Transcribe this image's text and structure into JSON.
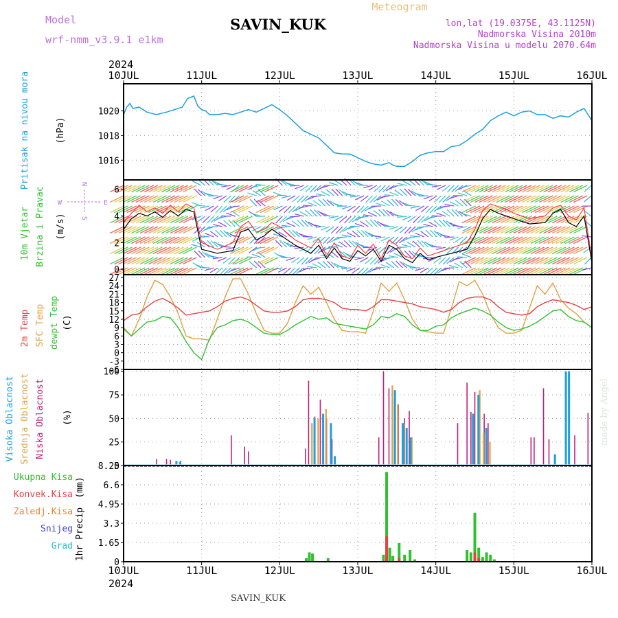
{
  "header": {
    "title": "SAVIN_KUK",
    "product": "Meteogram",
    "model_label": "Model",
    "model_name": "wrf-nmm_v3.9.1 e1km",
    "lonlat": "lon,lat (19.0375E, 43.1125N)",
    "elevation": "Nadmorska Visina 2010m",
    "model_elevation": "Nadmorska Visina u modelu 2070.64m",
    "footer_station": "SAVIN_KUK",
    "watermark": "made by Angel",
    "year_top": "2024",
    "year_bottom": "2024"
  },
  "colors": {
    "pressure": "#1a9fe0",
    "wind_speed": "#000000",
    "gust": "#ff3030",
    "temp2m": "#e84040",
    "sfc_temp": "#e0a040",
    "dewpoint": "#30c030",
    "cloud_high": "#1a9fe0",
    "cloud_mid": "#e0a040",
    "cloud_low": "#c0207a",
    "precip_total": "#30c030",
    "precip_conv": "#e84040",
    "precip_frozen": "#f08030",
    "snow": "#4040e0",
    "hail": "#20c0c0",
    "model_label": "#c070e0",
    "title_product": "#e8c080",
    "info_text": "#b040d0"
  },
  "chart_data": [
    {
      "type": "line",
      "panel": "pressure",
      "ylabel_name": "Pritisak na nivou mora",
      "ylabel_unit": "(hPa)",
      "ylim": [
        1014.4,
        1022.2
      ],
      "yticks": [
        "1016",
        "1018",
        "1020"
      ],
      "x_days": [
        "10JUL",
        "11JUL",
        "12JUL",
        "13JUL",
        "14JUL",
        "15JUL",
        "16JUL"
      ],
      "x": [
        0,
        0.04,
        0.08,
        0.12,
        0.2,
        0.3,
        0.42,
        0.55,
        0.65,
        0.75,
        0.82,
        0.9,
        0.95,
        1.0,
        1.05,
        1.1,
        1.2,
        1.3,
        1.4,
        1.5,
        1.6,
        1.7,
        1.8,
        1.9,
        2.0,
        2.1,
        2.2,
        2.3,
        2.4,
        2.5,
        2.6,
        2.7,
        2.8,
        2.9,
        3.0,
        3.1,
        3.2,
        3.3,
        3.4,
        3.45,
        3.5,
        3.6,
        3.7,
        3.8,
        3.9,
        4.0,
        4.1,
        4.2,
        4.3,
        4.4,
        4.5,
        4.6,
        4.7,
        4.8,
        4.9,
        5.0,
        5.1,
        5.2,
        5.3,
        5.4,
        5.5,
        5.6,
        5.7,
        5.8,
        5.9,
        6.0
      ],
      "values": [
        1019.7,
        1020.3,
        1020.6,
        1020.2,
        1020.3,
        1019.9,
        1019.7,
        1019.9,
        1020.1,
        1020.3,
        1021.0,
        1021.2,
        1020.4,
        1020.1,
        1020.0,
        1019.7,
        1019.7,
        1019.8,
        1019.7,
        1019.9,
        1020.1,
        1019.9,
        1020.2,
        1020.5,
        1020.1,
        1019.6,
        1019.0,
        1018.4,
        1018.1,
        1017.8,
        1017.2,
        1016.6,
        1016.5,
        1016.5,
        1016.2,
        1015.9,
        1015.7,
        1015.6,
        1015.8,
        1015.6,
        1015.5,
        1015.5,
        1015.9,
        1016.4,
        1016.6,
        1016.7,
        1016.7,
        1017.1,
        1017.2,
        1017.6,
        1018.1,
        1018.5,
        1019.2,
        1019.6,
        1019.9,
        1019.6,
        1019.9,
        1020.0,
        1019.7,
        1019.7,
        1019.4,
        1019.6,
        1019.5,
        1019.9,
        1020.2,
        1019.2
      ]
    },
    {
      "type": "line",
      "panel": "wind",
      "ylabel_name": "10m Vjetar",
      "ylabel_name2": "Brzina i Pravac",
      "ylabel_unit": "(m/s)",
      "compass_north": "N",
      "compass_south": "S",
      "compass_east": "E",
      "compass_west": "W",
      "ylim": [
        -0.4,
        6.7
      ],
      "yticks": [
        "0",
        "2",
        "4",
        "6"
      ],
      "x": [
        0,
        0.1,
        0.2,
        0.3,
        0.4,
        0.5,
        0.6,
        0.7,
        0.8,
        0.9,
        1.0,
        1.2,
        1.4,
        1.5,
        1.6,
        1.7,
        1.8,
        1.9,
        2.0,
        2.2,
        2.4,
        2.5,
        2.6,
        2.7,
        2.8,
        2.9,
        3.0,
        3.1,
        3.2,
        3.3,
        3.4,
        3.5,
        3.6,
        3.7,
        3.8,
        3.9,
        4.0,
        4.2,
        4.4,
        4.5,
        4.6,
        4.7,
        4.8,
        4.9,
        5.0,
        5.2,
        5.4,
        5.5,
        5.6,
        5.7,
        5.8,
        5.9,
        6.0
      ],
      "speed": [
        3.0,
        3.8,
        4.2,
        4.0,
        4.3,
        3.9,
        4.4,
        4.0,
        4.5,
        4.3,
        1.5,
        1.2,
        1.4,
        2.8,
        3.0,
        2.2,
        2.5,
        3.0,
        2.6,
        1.8,
        1.2,
        1.8,
        0.8,
        1.6,
        0.8,
        0.6,
        1.4,
        1.0,
        1.5,
        0.6,
        1.8,
        1.5,
        0.8,
        0.5,
        1.2,
        0.7,
        0.9,
        1.2,
        1.5,
        2.5,
        3.8,
        4.5,
        4.2,
        4.0,
        3.8,
        3.4,
        3.5,
        4.2,
        4.5,
        3.5,
        3.2,
        4.0,
        0.5
      ],
      "gust": [
        3.5,
        4.2,
        4.8,
        4.3,
        4.6,
        4.2,
        4.8,
        4.3,
        4.9,
        4.6,
        2.0,
        1.5,
        2.0,
        3.2,
        3.6,
        2.8,
        3.0,
        3.5,
        3.2,
        2.2,
        1.6,
        2.3,
        1.0,
        2.0,
        1.0,
        0.8,
        1.8,
        1.2,
        1.9,
        0.8,
        2.2,
        1.8,
        1.0,
        0.8,
        1.6,
        1.0,
        1.2,
        1.6,
        2.0,
        3.0,
        4.4,
        4.9,
        4.7,
        4.5,
        4.2,
        3.8,
        4.0,
        4.6,
        4.8,
        4.0,
        3.7,
        4.6,
        0.8
      ]
    },
    {
      "type": "line",
      "panel": "temperature",
      "ylabel_name1": "2m Temp",
      "ylabel_name2": "SFC Temp",
      "ylabel_name3": "dewpt Temp",
      "ylabel_unit": "(C)",
      "ylim": [
        -6,
        28
      ],
      "yticks": [
        "-6",
        "-3",
        "0",
        "3",
        "6",
        "9",
        "12",
        "15",
        "18",
        "21",
        "24",
        "27"
      ],
      "x": [
        0,
        0.1,
        0.2,
        0.3,
        0.4,
        0.5,
        0.6,
        0.7,
        0.8,
        0.9,
        1.0,
        1.1,
        1.2,
        1.3,
        1.4,
        1.5,
        1.6,
        1.7,
        1.8,
        1.9,
        2.0,
        2.1,
        2.2,
        2.3,
        2.4,
        2.5,
        2.6,
        2.7,
        2.8,
        2.9,
        3.0,
        3.1,
        3.2,
        3.3,
        3.4,
        3.5,
        3.6,
        3.7,
        3.8,
        3.9,
        4.0,
        4.1,
        4.2,
        4.3,
        4.4,
        4.5,
        4.6,
        4.7,
        4.8,
        4.9,
        5.0,
        5.1,
        5.2,
        5.3,
        5.4,
        5.5,
        5.6,
        5.7,
        5.8,
        5.9,
        6.0
      ],
      "t2m": [
        11.5,
        13.5,
        14.0,
        16.5,
        18.5,
        19.5,
        18.0,
        16.0,
        13.5,
        14.0,
        14.5,
        15.0,
        16.5,
        18.5,
        19.5,
        20.0,
        19.0,
        17.0,
        15.0,
        14.5,
        14.5,
        15.0,
        16.5,
        19.0,
        19.5,
        19.5,
        19.0,
        18.0,
        16.0,
        15.5,
        15.5,
        15.0,
        16.5,
        19.0,
        19.0,
        18.5,
        18.0,
        17.5,
        16.5,
        16.0,
        15.5,
        14.5,
        15.5,
        18.0,
        19.5,
        20.0,
        20.0,
        19.0,
        16.5,
        14.5,
        14.0,
        13.5,
        14.0,
        16.5,
        18.0,
        19.0,
        18.5,
        18.0,
        17.0,
        15.5,
        16.5
      ],
      "sfc": [
        9.0,
        6.0,
        12.0,
        20.0,
        26.0,
        24.5,
        20.0,
        14.0,
        6.0,
        5.0,
        5.0,
        4.5,
        12.0,
        20.0,
        26.5,
        26.5,
        21.0,
        14.0,
        8.0,
        7.0,
        7.0,
        10.5,
        18.0,
        24.0,
        21.0,
        23.5,
        18.0,
        12.0,
        8.0,
        7.5,
        7.5,
        7.0,
        15.0,
        25.0,
        22.0,
        25.0,
        19.0,
        12.0,
        8.0,
        7.5,
        7.0,
        7.0,
        16.0,
        25.5,
        24.0,
        26.0,
        21.0,
        14.0,
        9.0,
        7.0,
        7.0,
        8.0,
        16.0,
        24.0,
        21.0,
        25.0,
        19.0,
        16.0,
        14.0,
        11.0,
        9.0
      ],
      "dewpt": [
        8.5,
        6.0,
        8.5,
        11.0,
        11.5,
        13.0,
        12.5,
        9.0,
        4.0,
        0.0,
        -2.5,
        5.0,
        9.0,
        10.0,
        11.5,
        12.0,
        11.0,
        9.0,
        7.0,
        6.5,
        6.5,
        8.0,
        10.0,
        11.5,
        13.0,
        12.0,
        12.5,
        10.5,
        10.0,
        9.5,
        9.0,
        8.5,
        10.0,
        13.0,
        12.5,
        14.0,
        13.0,
        10.0,
        8.0,
        8.0,
        9.5,
        10.0,
        12.5,
        14.0,
        15.0,
        16.0,
        15.0,
        13.5,
        11.0,
        9.0,
        8.0,
        8.5,
        9.5,
        11.0,
        13.0,
        15.0,
        15.5,
        13.0,
        11.5,
        11.0,
        9.0
      ]
    },
    {
      "type": "bar",
      "panel": "clouds",
      "ylabel_name1": "Visoka Oblacnost",
      "ylabel_name2": "Srednja Oblacnost",
      "ylabel_name3": "Niska Oblacnost",
      "ylabel_unit": "(%)",
      "ylim": [
        0,
        102
      ],
      "yticks": [
        "0",
        "25",
        "50",
        "75",
        "100"
      ],
      "high": [
        [
          0.65,
          5
        ],
        [
          0.7,
          4
        ],
        [
          2.42,
          50
        ],
        [
          2.53,
          55
        ],
        [
          2.63,
          45
        ],
        [
          2.68,
          10
        ],
        [
          3.45,
          80
        ],
        [
          3.55,
          45
        ],
        [
          3.6,
          40
        ],
        [
          3.65,
          30
        ],
        [
          4.45,
          55
        ],
        [
          4.52,
          75
        ],
        [
          4.62,
          40
        ],
        [
          5.5,
          12
        ],
        [
          5.64,
          100
        ],
        [
          5.68,
          100
        ]
      ],
      "mid": [
        [
          2.4,
          45
        ],
        [
          2.48,
          50
        ],
        [
          2.58,
          60
        ],
        [
          3.43,
          85
        ],
        [
          3.5,
          65
        ],
        [
          3.58,
          45
        ],
        [
          3.68,
          30
        ],
        [
          4.47,
          55
        ],
        [
          4.55,
          80
        ],
        [
          4.6,
          35
        ],
        [
          4.68,
          25
        ]
      ],
      "low": [
        [
          0.42,
          7
        ],
        [
          0.55,
          7
        ],
        [
          0.6,
          6
        ],
        [
          0.73,
          5
        ],
        [
          1.38,
          32
        ],
        [
          1.55,
          20
        ],
        [
          1.6,
          15
        ],
        [
          2.33,
          18
        ],
        [
          2.37,
          90
        ],
        [
          2.45,
          52
        ],
        [
          2.52,
          70
        ],
        [
          2.6,
          50
        ],
        [
          2.67,
          28
        ],
        [
          3.27,
          30
        ],
        [
          3.33,
          100
        ],
        [
          3.4,
          82
        ],
        [
          3.47,
          70
        ],
        [
          3.52,
          65
        ],
        [
          3.6,
          50
        ],
        [
          3.66,
          58
        ],
        [
          4.28,
          45
        ],
        [
          4.4,
          88
        ],
        [
          4.45,
          57
        ],
        [
          4.5,
          78
        ],
        [
          4.62,
          55
        ],
        [
          4.67,
          45
        ],
        [
          5.22,
          30
        ],
        [
          5.26,
          30
        ],
        [
          5.38,
          82
        ],
        [
          5.45,
          28
        ],
        [
          5.78,
          32
        ],
        [
          5.95,
          56
        ]
      ]
    },
    {
      "type": "bar",
      "panel": "precipitation",
      "ylabel_name": "1hr Precip",
      "ylabel_unit": "(mm)",
      "ylim": [
        0,
        8.25
      ],
      "yticks": [
        "0",
        "1.65",
        "3.3",
        "4.95",
        "6.6",
        "8.25"
      ],
      "legend": [
        "Ukupna Kisa",
        "Konvek.Kisa",
        "Zaledj.Kisa",
        "Snijeg",
        "Grad"
      ],
      "total": [
        [
          2.34,
          0.3
        ],
        [
          2.38,
          0.8
        ],
        [
          2.42,
          0.7
        ],
        [
          2.62,
          0.3
        ],
        [
          3.33,
          0.6
        ],
        [
          3.37,
          7.7
        ],
        [
          3.41,
          1.2
        ],
        [
          3.45,
          0.5
        ],
        [
          3.53,
          1.6
        ],
        [
          3.6,
          0.6
        ],
        [
          3.67,
          1.0
        ],
        [
          3.73,
          0.2
        ],
        [
          4.4,
          1.0
        ],
        [
          4.45,
          0.8
        ],
        [
          4.5,
          4.2
        ],
        [
          4.55,
          1.2
        ],
        [
          4.6,
          0.4
        ],
        [
          4.65,
          0.8
        ],
        [
          4.7,
          0.6
        ],
        [
          4.75,
          0.2
        ]
      ],
      "convective": [
        [
          3.37,
          2.2
        ],
        [
          3.53,
          0.3
        ],
        [
          4.5,
          0.8
        ],
        [
          4.55,
          0.3
        ]
      ]
    }
  ]
}
